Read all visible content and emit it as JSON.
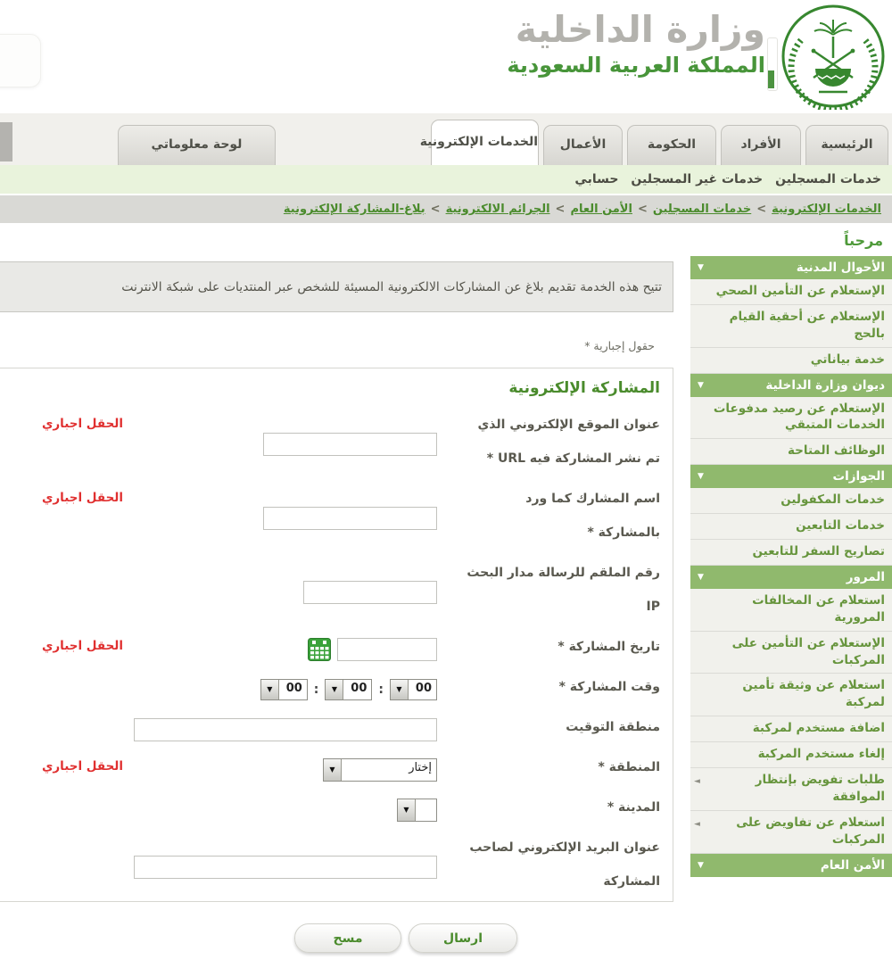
{
  "header": {
    "ministry_name": "وزارة الداخلية",
    "country_name": "المملكة العربية السعودية",
    "logo": "moi-emblem"
  },
  "tabs": [
    {
      "id": "home",
      "label": "الرئيسية",
      "active": false
    },
    {
      "id": "individuals",
      "label": "الأفراد",
      "active": false
    },
    {
      "id": "government",
      "label": "الحكومة",
      "active": false
    },
    {
      "id": "business",
      "label": "الأعمال",
      "active": false
    },
    {
      "id": "eservices",
      "label": "الخدمات الإلكترونية",
      "active": true
    },
    {
      "id": "dashboard",
      "label": "لوحة معلوماتي",
      "active": false
    }
  ],
  "subnav": {
    "items": [
      "خدمات المسجلين",
      "خدمات غير المسجلين",
      "حسابي"
    ]
  },
  "breadcrumb": {
    "separator": ">",
    "items": [
      "الخدمات الإلكترونية",
      "خدمات المسجلين",
      "الأمن العام",
      "الجرائم الالكترونية",
      "بلاغ-المشاركة الإلكترونية"
    ]
  },
  "sidebar": {
    "welcome": "مرحباً",
    "sections": [
      {
        "id": "civil-affairs",
        "title": "الأحوال المدنية",
        "items": [
          {
            "label": "الإستعلام عن التأمين الصحي"
          },
          {
            "label": "الإستعلام عن أحقية القيام بالحج"
          },
          {
            "label": "خدمة بياناتي"
          }
        ]
      },
      {
        "id": "moi-diwan",
        "title": "ديوان وزارة الداخلية",
        "items": [
          {
            "label": "الإستعلام عن رصيد مدفوعات الخدمات المتبقي"
          },
          {
            "label": "الوظائف المتاحة"
          }
        ]
      },
      {
        "id": "passports",
        "title": "الجوازات",
        "items": [
          {
            "label": "خدمات المكفولين"
          },
          {
            "label": "خدمات التابعين"
          },
          {
            "label": "تصاريح السفر للتابعين"
          }
        ]
      },
      {
        "id": "traffic",
        "title": "المرور",
        "items": [
          {
            "label": "استعلام عن المخالفات المرورية"
          },
          {
            "label": "الإستعلام عن التأمين على المركبات"
          },
          {
            "label": "استعلام عن وثيقة تأمين لمركبة"
          },
          {
            "label": "اضافة مستخدم لمركبة"
          },
          {
            "label": "إلغاء مستخدم المركبة"
          },
          {
            "label": "طلبات تفويض بإنتظار الموافقة",
            "arrow": true
          },
          {
            "label": "استعلام عن تفاويض على المركبات",
            "arrow": true
          }
        ]
      },
      {
        "id": "public-security",
        "title": "الأمن العام",
        "items": []
      }
    ]
  },
  "main": {
    "description": "تتيح هذه الخدمة تقديم بلاغ عن المشاركات الالكترونية المسيئة للشخص عبر المنتديات على شبكة الانترنت",
    "required_fields_note": "حقول إجبارية *",
    "form_title": "المشاركة الإلكترونية",
    "required_field_label": "الحقل اجباري",
    "fields": [
      {
        "label": "عنوان الموقع الإلكتروني الذي\nتم نشر المشاركة فيه URL *",
        "required": true,
        "value": ""
      },
      {
        "label": "اسم المشارك كما ورد\nبالمشاركة *",
        "required": true,
        "value": ""
      },
      {
        "label": "رقم الملقم للرسالة مدار البحث\nIP",
        "required": false,
        "value": ""
      },
      {
        "label": "تاريخ المشاركة *",
        "required": true,
        "value": ""
      },
      {
        "label": "وقت المشاركة *",
        "required": false
      },
      {
        "label": "منطقة التوقيت",
        "required": false,
        "value": ""
      },
      {
        "label": "المنطقة *",
        "required": true
      },
      {
        "label": "المدينة *",
        "required": false
      },
      {
        "label": "عنوان البريد الإلكتروني لصاحب\nالمشاركة",
        "required": false,
        "value": ""
      }
    ],
    "time": {
      "h": "00",
      "m": "00",
      "s": "00",
      "separator": ":"
    },
    "region_value": "إختار",
    "city_value": "",
    "buttons": {
      "submit_label": "ارسال",
      "clear_label": "مسح"
    }
  },
  "colors": {
    "brand_green": "#48953a",
    "link_green": "#4a8b2c",
    "sidebar_header_green": "#90b96d",
    "required_red": "#e03030",
    "subnav_bg": "#e9f3dc",
    "breadcrumb_bg": "#d9d9d5"
  }
}
